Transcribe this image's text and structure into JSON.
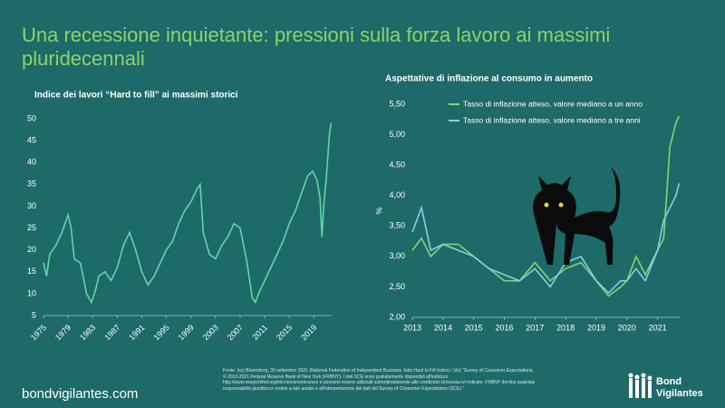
{
  "title": "Una recessione inquietante: pressioni sulla forza lavoro ai massimi pluridecennali",
  "chart_data": [
    {
      "type": "line",
      "title": "Indice dei lavori “Hard to fill” ai massimi storici",
      "x": [
        1975,
        1975.5,
        1976,
        1977,
        1978,
        1979,
        1979.5,
        1980,
        1981,
        1982,
        1982.8,
        1983.5,
        1984,
        1985,
        1986,
        1987,
        1988,
        1989,
        1990,
        1991,
        1992,
        1993,
        1994,
        1995,
        1996,
        1997,
        1998,
        1999,
        2000,
        2000.5,
        2001,
        2002,
        2003,
        2004,
        2005,
        2006,
        2007,
        2008,
        2009,
        2009.5,
        2010,
        2011,
        2012,
        2013,
        2014,
        2015,
        2016,
        2017,
        2018,
        2018.8,
        2019.5,
        2020,
        2020.3,
        2020.6,
        2021,
        2021.5,
        2021.8
      ],
      "values": [
        17,
        14,
        19,
        21,
        24,
        28,
        25,
        18,
        17,
        10,
        8,
        11,
        14,
        15,
        13,
        16,
        21,
        24,
        20,
        15,
        12,
        14,
        17,
        20,
        22,
        26,
        29,
        31,
        34,
        35,
        24,
        19,
        18,
        21,
        23,
        26,
        25,
        18,
        9,
        8,
        10,
        13,
        16,
        19,
        22,
        26,
        29,
        33,
        37,
        38,
        36,
        32,
        23,
        30,
        36,
        46,
        49
      ],
      "color": "#5fd6a4",
      "xlim": [
        1975,
        2021.9
      ],
      "xticks": [
        1975,
        1979,
        1983,
        1987,
        1991,
        1995,
        1999,
        2003,
        2007,
        2011,
        2015,
        2019
      ],
      "ylim": [
        5,
        50
      ],
      "yticks": [
        5,
        10,
        15,
        20,
        25,
        30,
        35,
        40,
        45,
        50
      ]
    },
    {
      "type": "line",
      "title": "Aspettative di inflazione al consumo in aumento",
      "y_label": "%",
      "x": [
        2013,
        2013.3,
        2013.6,
        2014,
        2014.5,
        2015,
        2015.5,
        2016,
        2016.5,
        2017,
        2017.5,
        2018,
        2018.5,
        2019,
        2019.4,
        2019.8,
        2020,
        2020.3,
        2020.6,
        2021,
        2021.2,
        2021.4,
        2021.6,
        2021.7
      ],
      "series": [
        {
          "name": "Tasso di inflazione atteso, valore mediano a un anno",
          "color": "#8fd16b",
          "values": [
            3.1,
            3.3,
            3.0,
            3.2,
            3.2,
            3.0,
            2.8,
            2.6,
            2.6,
            2.9,
            2.6,
            2.8,
            2.9,
            2.6,
            2.35,
            2.5,
            2.6,
            3.0,
            2.7,
            3.1,
            3.3,
            4.8,
            5.2,
            5.3
          ]
        },
        {
          "name": "Tasso di inflazione atteso, valore mediano a tre anni",
          "color": "#7fd0e8",
          "values": [
            3.4,
            3.8,
            3.1,
            3.2,
            3.1,
            3.0,
            2.8,
            2.7,
            2.6,
            2.8,
            2.5,
            2.9,
            3.0,
            2.6,
            2.4,
            2.6,
            2.6,
            2.8,
            2.6,
            3.1,
            3.6,
            3.8,
            4.0,
            4.2
          ]
        }
      ],
      "xlim": [
        2013,
        2021.75
      ],
      "xticks": [
        2013,
        2014,
        2015,
        2016,
        2017,
        2018,
        2019,
        2020,
        2021
      ],
      "ylim": [
        2,
        5.5
      ],
      "yticks": [
        {
          "value": 2,
          "label": "2,00"
        },
        {
          "value": 2.5,
          "label": "2,50"
        },
        {
          "value": 3,
          "label": "3,00"
        },
        {
          "value": 3.5,
          "label": "3,50"
        },
        {
          "value": 4,
          "label": "4,00"
        },
        {
          "value": 4.5,
          "label": "4,50"
        },
        {
          "value": 5,
          "label": "5,00"
        },
        {
          "value": 5.5,
          "label": "5,50"
        }
      ]
    }
  ],
  "source": "Fonte: (sx) Bloomberg, 30 settembre 2021 (National Federation of Independent Business Jobs Hard to Fill Index) / (dx) “Survey of Consumer Expectations, © 2013-2021 Federal Reserve Bank of New York (FRBNY). I dati SCE sono gratuitamente disponibili all'indirizzo http://www.newyorkfed.org/microeconomics/sce e possono essere utilizzati subordinatamente alle condizioni di licenza ivi indicate. FRBNY declina qualsiasi responsabilità giuridica in ordine a tale analisi e all'interpretazione dei dati del Survey of Consumer Expectations (SCE).”",
  "website": "bondvigilantes.com",
  "logo": [
    "Bond",
    "Vigilantes"
  ]
}
